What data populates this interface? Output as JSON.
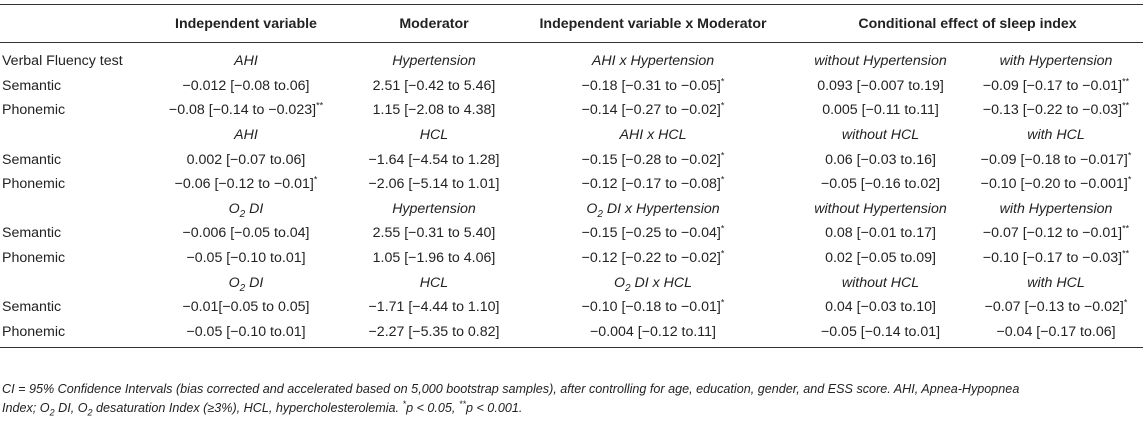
{
  "headers": [
    "",
    "Independent variable",
    "Moderator",
    "Independent variable x Moderator",
    "Conditional effect of sleep index"
  ],
  "row_label": "Verbal Fluency test",
  "groups": [
    {
      "sub": {
        "iv": "AHI",
        "mod": "Hypertension",
        "int": "AHI x Hypertension",
        "without": "without Hypertension",
        "with": "with Hypertension"
      },
      "rows": [
        {
          "label": "Semantic",
          "iv": "−0.012 [−0.08 to.06]",
          "mod": "2.51 [−0.42 to 5.46]",
          "int": "−0.18 [−0.31 to −0.05]",
          "int_sig": "*",
          "without": "0.093 [−0.007 to.19]",
          "without_sig": "",
          "with": "−0.09 [−0.17 to −0.01]",
          "with_sig": "**",
          "iv_sig": ""
        },
        {
          "label": "Phonemic",
          "iv": "−0.08 [−0.14 to −0.023]",
          "iv_sig": "**",
          "mod": "1.15 [−2.08 to 4.38]",
          "int": "−0.14 [−0.27 to −0.02]",
          "int_sig": "*",
          "without": "0.005 [−0.11 to.11]",
          "without_sig": "",
          "with": "−0.13 [−0.22 to −0.03]",
          "with_sig": "**"
        }
      ]
    },
    {
      "sub": {
        "iv": "AHI",
        "mod": "HCL",
        "int": "AHI x HCL",
        "without": "without HCL",
        "with": "with HCL"
      },
      "rows": [
        {
          "label": "Semantic",
          "iv": "0.002 [−0.07 to.06]",
          "iv_sig": "",
          "mod": "−1.64 [−4.54 to 1.28]",
          "int": "−0.15 [−0.28 to −0.02]",
          "int_sig": "*",
          "without": "0.06 [−0.03 to.16]",
          "without_sig": "",
          "with": "−0.09 [−0.18 to −0.017]",
          "with_sig": "*"
        },
        {
          "label": "Phonemic",
          "iv": "−0.06 [−0.12 to −0.01]",
          "iv_sig": "*",
          "mod": "−2.06 [−5.14 to 1.01]",
          "int": "−0.12 [−0.17 to −0.08]",
          "int_sig": "*",
          "without": "−0.05 [−0.16 to.02]",
          "without_sig": "",
          "with": "−0.10 [−0.20 to −0.001]",
          "with_sig": "*"
        }
      ]
    },
    {
      "sub": {
        "iv_o2": "O",
        "iv_rest": " DI",
        "mod": "Hypertension",
        "int_o2": "O",
        "int_rest": " DI x Hypertension",
        "without": "without Hypertension",
        "with": "with Hypertension"
      },
      "rows": [
        {
          "label": "Semantic",
          "iv": "−0.006 [−0.05 to.04]",
          "iv_sig": "",
          "mod": "2.55 [−0.31 to 5.40]",
          "int": "−0.15 [−0.25 to −0.04]",
          "int_sig": "*",
          "without": "0.08 [−0.01 to.17]",
          "without_sig": "",
          "with": "−0.07 [−0.12 to −0.01]",
          "with_sig": "**"
        },
        {
          "label": "Phonemic",
          "iv": "−0.05 [−0.10 to.01]",
          "iv_sig": "",
          "mod": "1.05 [−1.96 to 4.06]",
          "int": "−0.12 [−0.22 to −0.02]",
          "int_sig": "*",
          "without": "0.02 [−0.05 to.09]",
          "without_sig": "",
          "with": "−0.10 [−0.17 to −0.03]",
          "with_sig": "**"
        }
      ]
    },
    {
      "sub": {
        "iv_o2": "O",
        "iv_rest": " DI",
        "mod": "HCL",
        "int_o2": "O",
        "int_rest": " DI x HCL",
        "without": "without HCL",
        "with": "with HCL"
      },
      "rows": [
        {
          "label": "Semantic",
          "iv": "−0.01[−0.05 to 0.05]",
          "iv_sig": "",
          "mod": "−1.71 [−4.44 to 1.10]",
          "int": "−0.10 [−0.18 to −0.01]",
          "int_sig": "*",
          "without": "0.04 [−0.03 to.10]",
          "without_sig": "",
          "with": "−0.07 [−0.13 to −0.02]",
          "with_sig": "*"
        },
        {
          "label": "Phonemic",
          "iv": "−0.05 [−0.10 to.01]",
          "iv_sig": "",
          "mod": "−2.27 [−5.35 to 0.82]",
          "int": "−0.004 [−0.12 to.11]",
          "int_sig": "",
          "without": "−0.05 [−0.14 to.01]",
          "without_sig": "",
          "with": "−0.04 [−0.17 to.06]",
          "with_sig": ""
        }
      ]
    }
  ],
  "o2_subscript": "2",
  "footnote": {
    "p1": "CI = 95% Confidence Intervals (bias corrected and accelerated based on 5,000 bootstrap samples), after controlling for age, education, gender, and ESS score. AHI, Apnea-Hypopnea",
    "p2a": "Index; O",
    "p2b": " DI, O",
    "p2c": " desaturation Index (≥3%), HCL, hypercholesterolemia. ",
    "s1": "*",
    "p3": "p < 0.05, ",
    "s2": "**",
    "p4": "p < 0.001."
  }
}
